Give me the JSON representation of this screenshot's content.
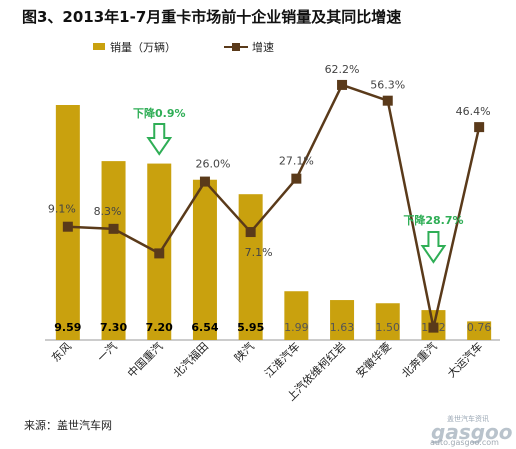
{
  "page_title": "图3、2013年1-7月重卡市场前十企业销量及其同比增速",
  "source": "来源：盖世汽车网",
  "watermark": {
    "top_text": "盖世汽车资讯",
    "logo": "gasgoo",
    "url": "auto.gasgoo.com"
  },
  "colors": {
    "bar": "#C9A10E",
    "line": "#5A3A1A",
    "annotation": "#2FAE56",
    "axis": "#999999"
  },
  "chart_data": {
    "type": "bar",
    "title": "图3、2013年1-7月重卡市场前十企业销量及其同比增速",
    "categories": [
      "东风",
      "一汽",
      "中国重汽",
      "北汽福田",
      "陕汽",
      "江淮汽车",
      "上汽依维柯红岩",
      "安徽华菱",
      "北奔重汽",
      "大运汽车"
    ],
    "series": [
      {
        "name": "销量（万辆）",
        "type": "bar",
        "values": [
          9.59,
          7.3,
          7.2,
          6.54,
          5.95,
          1.99,
          1.63,
          1.5,
          1.22,
          0.76
        ],
        "labels": [
          "9.59",
          "7.30",
          "7.20",
          "6.54",
          "5.95",
          "1.99",
          "1.63",
          "1.50",
          "1.22",
          "0.76"
        ]
      },
      {
        "name": "增速",
        "type": "line",
        "values": [
          9.1,
          8.3,
          -0.9,
          26.0,
          7.1,
          27.1,
          62.2,
          56.3,
          -28.7,
          46.4
        ],
        "labels": [
          "9.1%",
          "8.3%",
          "",
          "26.0%",
          "7.1%",
          "27.1%",
          "62.2%",
          "56.3%",
          "",
          "46.4%"
        ]
      }
    ],
    "annotations": [
      {
        "category": "中国重汽",
        "text": "下降0.9%"
      },
      {
        "category": "北奔重汽",
        "text": "下降28.7%"
      }
    ],
    "legend": {
      "position": "top"
    }
  }
}
